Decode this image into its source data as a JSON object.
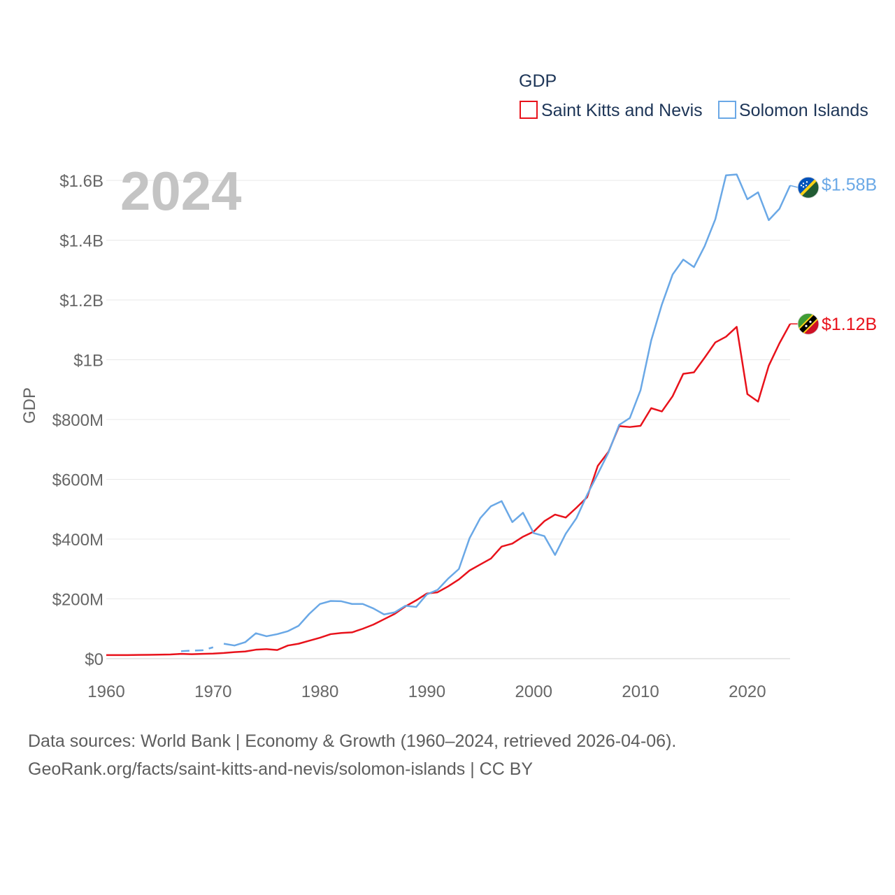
{
  "chart_data": {
    "type": "line",
    "title": "GDP",
    "ylabel": "GDP",
    "xlabel": "",
    "current_year": "2024",
    "xlim": [
      1960,
      2024
    ],
    "ylim": [
      0,
      1600000000
    ],
    "x_ticks": [
      1960,
      1970,
      1980,
      1990,
      2000,
      2010,
      2020
    ],
    "y_ticks": [
      {
        "value": 0,
        "label": "$0"
      },
      {
        "value": 200000000,
        "label": "$200M"
      },
      {
        "value": 400000000,
        "label": "$400M"
      },
      {
        "value": 600000000,
        "label": "$600M"
      },
      {
        "value": 800000000,
        "label": "$800M"
      },
      {
        "value": 1000000000,
        "label": "$1B"
      },
      {
        "value": 1200000000,
        "label": "$1.2B"
      },
      {
        "value": 1400000000,
        "label": "$1.4B"
      },
      {
        "value": 1600000000,
        "label": "$1.6B"
      }
    ],
    "grid": true,
    "legend_position": "top-right",
    "series": [
      {
        "name": "Saint Kitts and Nevis",
        "color": "#e8121b",
        "end_label": "$1.12B",
        "flag": "saint-kitts-and-nevis-flag-icon",
        "data": [
          [
            1960,
            12000000
          ],
          [
            1961,
            12000000
          ],
          [
            1962,
            12000000
          ],
          [
            1963,
            12500000
          ],
          [
            1964,
            13000000
          ],
          [
            1965,
            13500000
          ],
          [
            1966,
            14000000
          ],
          [
            1967,
            16000000
          ],
          [
            1968,
            15000000
          ],
          [
            1969,
            16000000
          ],
          [
            1970,
            17000000
          ],
          [
            1971,
            19000000
          ],
          [
            1972,
            22000000
          ],
          [
            1973,
            24000000
          ],
          [
            1974,
            30000000
          ],
          [
            1975,
            32000000
          ],
          [
            1976,
            29000000
          ],
          [
            1977,
            44000000
          ],
          [
            1978,
            50000000
          ],
          [
            1979,
            60000000
          ],
          [
            1980,
            70000000
          ],
          [
            1981,
            82000000
          ],
          [
            1982,
            86000000
          ],
          [
            1983,
            88000000
          ],
          [
            1984,
            100000000
          ],
          [
            1985,
            114000000
          ],
          [
            1986,
            132000000
          ],
          [
            1987,
            150000000
          ],
          [
            1988,
            175000000
          ],
          [
            1989,
            195000000
          ],
          [
            1990,
            218000000
          ],
          [
            1991,
            222000000
          ],
          [
            1992,
            242000000
          ],
          [
            1993,
            265000000
          ],
          [
            1994,
            295000000
          ],
          [
            1995,
            315000000
          ],
          [
            1996,
            335000000
          ],
          [
            1997,
            375000000
          ],
          [
            1998,
            385000000
          ],
          [
            1999,
            408000000
          ],
          [
            2000,
            425000000
          ],
          [
            2001,
            460000000
          ],
          [
            2002,
            482000000
          ],
          [
            2003,
            472000000
          ],
          [
            2004,
            505000000
          ],
          [
            2005,
            540000000
          ],
          [
            2006,
            645000000
          ],
          [
            2007,
            692000000
          ],
          [
            2008,
            778000000
          ],
          [
            2009,
            775000000
          ],
          [
            2010,
            779000000
          ],
          [
            2011,
            838000000
          ],
          [
            2012,
            827000000
          ],
          [
            2013,
            878000000
          ],
          [
            2014,
            953000000
          ],
          [
            2015,
            958000000
          ],
          [
            2016,
            1007000000
          ],
          [
            2017,
            1058000000
          ],
          [
            2018,
            1077000000
          ],
          [
            2019,
            1110000000
          ],
          [
            2020,
            885000000
          ],
          [
            2021,
            860000000
          ],
          [
            2022,
            980000000
          ],
          [
            2023,
            1055000000
          ],
          [
            2024,
            1120000000
          ]
        ]
      },
      {
        "name": "Solomon Islands",
        "color": "#6aa8e6",
        "end_label": "$1.58B",
        "flag": "solomon-islands-flag-icon",
        "dashed_segment": [
          [
            1967,
            25000000
          ],
          [
            1968,
            27000000
          ],
          [
            1969,
            28000000
          ],
          [
            1970,
            38000000
          ]
        ],
        "data": [
          [
            1971,
            50000000
          ],
          [
            1972,
            44000000
          ],
          [
            1973,
            55000000
          ],
          [
            1974,
            85000000
          ],
          [
            1975,
            75000000
          ],
          [
            1976,
            82000000
          ],
          [
            1977,
            92000000
          ],
          [
            1978,
            110000000
          ],
          [
            1979,
            150000000
          ],
          [
            1980,
            183000000
          ],
          [
            1981,
            193000000
          ],
          [
            1982,
            192000000
          ],
          [
            1983,
            183000000
          ],
          [
            1984,
            183000000
          ],
          [
            1985,
            168000000
          ],
          [
            1986,
            148000000
          ],
          [
            1987,
            155000000
          ],
          [
            1988,
            177000000
          ],
          [
            1989,
            173000000
          ],
          [
            1990,
            215000000
          ],
          [
            1991,
            230000000
          ],
          [
            1992,
            268000000
          ],
          [
            1993,
            300000000
          ],
          [
            1994,
            403000000
          ],
          [
            1995,
            470000000
          ],
          [
            1996,
            510000000
          ],
          [
            1997,
            527000000
          ],
          [
            1998,
            457000000
          ],
          [
            1999,
            488000000
          ],
          [
            2000,
            420000000
          ],
          [
            2001,
            410000000
          ],
          [
            2002,
            347000000
          ],
          [
            2003,
            418000000
          ],
          [
            2004,
            470000000
          ],
          [
            2005,
            548000000
          ],
          [
            2006,
            618000000
          ],
          [
            2007,
            690000000
          ],
          [
            2008,
            782000000
          ],
          [
            2009,
            805000000
          ],
          [
            2010,
            898000000
          ],
          [
            2011,
            1065000000
          ],
          [
            2012,
            1185000000
          ],
          [
            2013,
            1285000000
          ],
          [
            2014,
            1335000000
          ],
          [
            2015,
            1310000000
          ],
          [
            2016,
            1380000000
          ],
          [
            2017,
            1470000000
          ],
          [
            2018,
            1617000000
          ],
          [
            2019,
            1620000000
          ],
          [
            2020,
            1537000000
          ],
          [
            2021,
            1560000000
          ],
          [
            2022,
            1467000000
          ],
          [
            2023,
            1505000000
          ],
          [
            2024,
            1583000000
          ]
        ]
      }
    ]
  },
  "footer": {
    "line1": "Data sources: World Bank | Economy & Growth (1960–2024, retrieved 2026-04-06).",
    "line2": "GeoRank.org/facts/saint-kitts-and-nevis/solomon-islands | CC BY"
  }
}
